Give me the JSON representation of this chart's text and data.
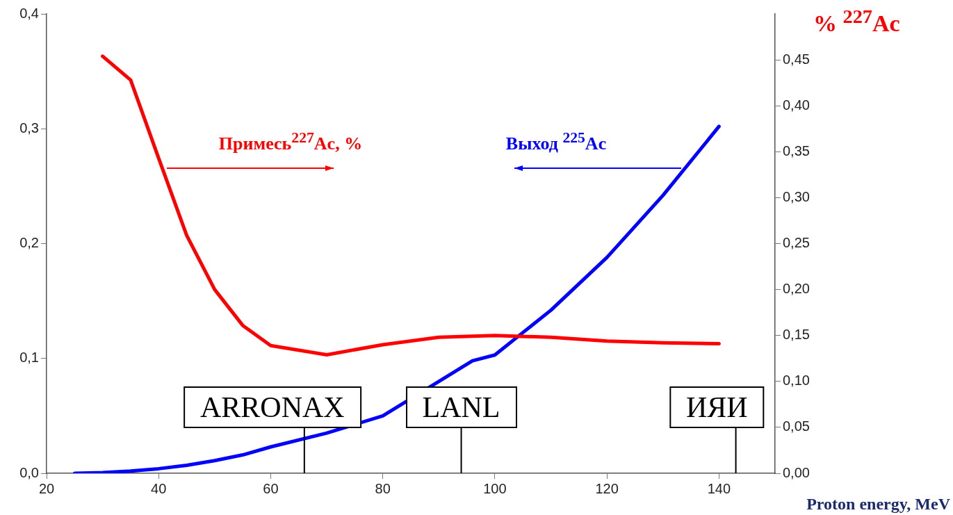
{
  "chart_data": {
    "type": "line",
    "xlabel": "Proton energy, MeV",
    "y2label": "% $^{227}$Ac",
    "xlim": [
      20,
      150
    ],
    "xticks": [
      20,
      40,
      60,
      80,
      100,
      120,
      140
    ],
    "ylim": [
      0,
      0.4
    ],
    "yticks": [
      {
        "value": 0,
        "label": "0,0"
      },
      {
        "value": 0.1,
        "label": "0,1"
      },
      {
        "value": 0.2,
        "label": "0,2"
      },
      {
        "value": 0.3,
        "label": "0,3"
      },
      {
        "value": 0.4,
        "label": "0,4"
      }
    ],
    "y2lim": [
      0,
      0.5
    ],
    "y2ticks": [
      {
        "value": 0,
        "label": "0,00"
      },
      {
        "value": 0.05,
        "label": "0,05"
      },
      {
        "value": 0.1,
        "label": "0,10"
      },
      {
        "value": 0.15,
        "label": "0,15"
      },
      {
        "value": 0.2,
        "label": "0,20"
      },
      {
        "value": 0.25,
        "label": "0,25"
      },
      {
        "value": 0.3,
        "label": "0,30"
      },
      {
        "value": 0.35,
        "label": "0,35"
      },
      {
        "value": 0.4,
        "label": "0,40"
      },
      {
        "value": 0.45,
        "label": "0,45"
      }
    ],
    "grid": false,
    "legend": false,
    "marker": "none",
    "line_style": "solid",
    "series": [
      {
        "name": "Примесь$^{227}$Ac, %",
        "color": "#ff0000",
        "axis": "y2",
        "x": [
          30,
          35,
          40,
          45,
          50,
          55,
          60,
          70,
          80,
          90,
          100,
          110,
          120,
          130,
          140
        ],
        "values": [
          0.454,
          0.428,
          0.343,
          0.259,
          0.2,
          0.161,
          0.139,
          0.129,
          0.14,
          0.148,
          0.15,
          0.148,
          0.144,
          0.142,
          0.141
        ]
      },
      {
        "name": "Выход $^{225}$Ac",
        "color": "#0000ff",
        "x": [
          25,
          30,
          35,
          40,
          45,
          50,
          55,
          60,
          70,
          80,
          96,
          100,
          110,
          120,
          130,
          140
        ],
        "values": [
          0,
          0.0006,
          0.002,
          0.004,
          0.007,
          0.011,
          0.016,
          0.023,
          0.035,
          0.05,
          0.098,
          0.103,
          0.142,
          0.188,
          0.242,
          0.302
        ]
      }
    ],
    "ref_lines": [
      {
        "axis": "x",
        "value": 66,
        "label": "ARRONAX",
        "color": "#000000"
      },
      {
        "axis": "x",
        "value": 94,
        "label": "LANL",
        "color": "#000000"
      },
      {
        "axis": "x",
        "value": 143,
        "label": "ИЯИ",
        "color": "#000000"
      }
    ]
  }
}
